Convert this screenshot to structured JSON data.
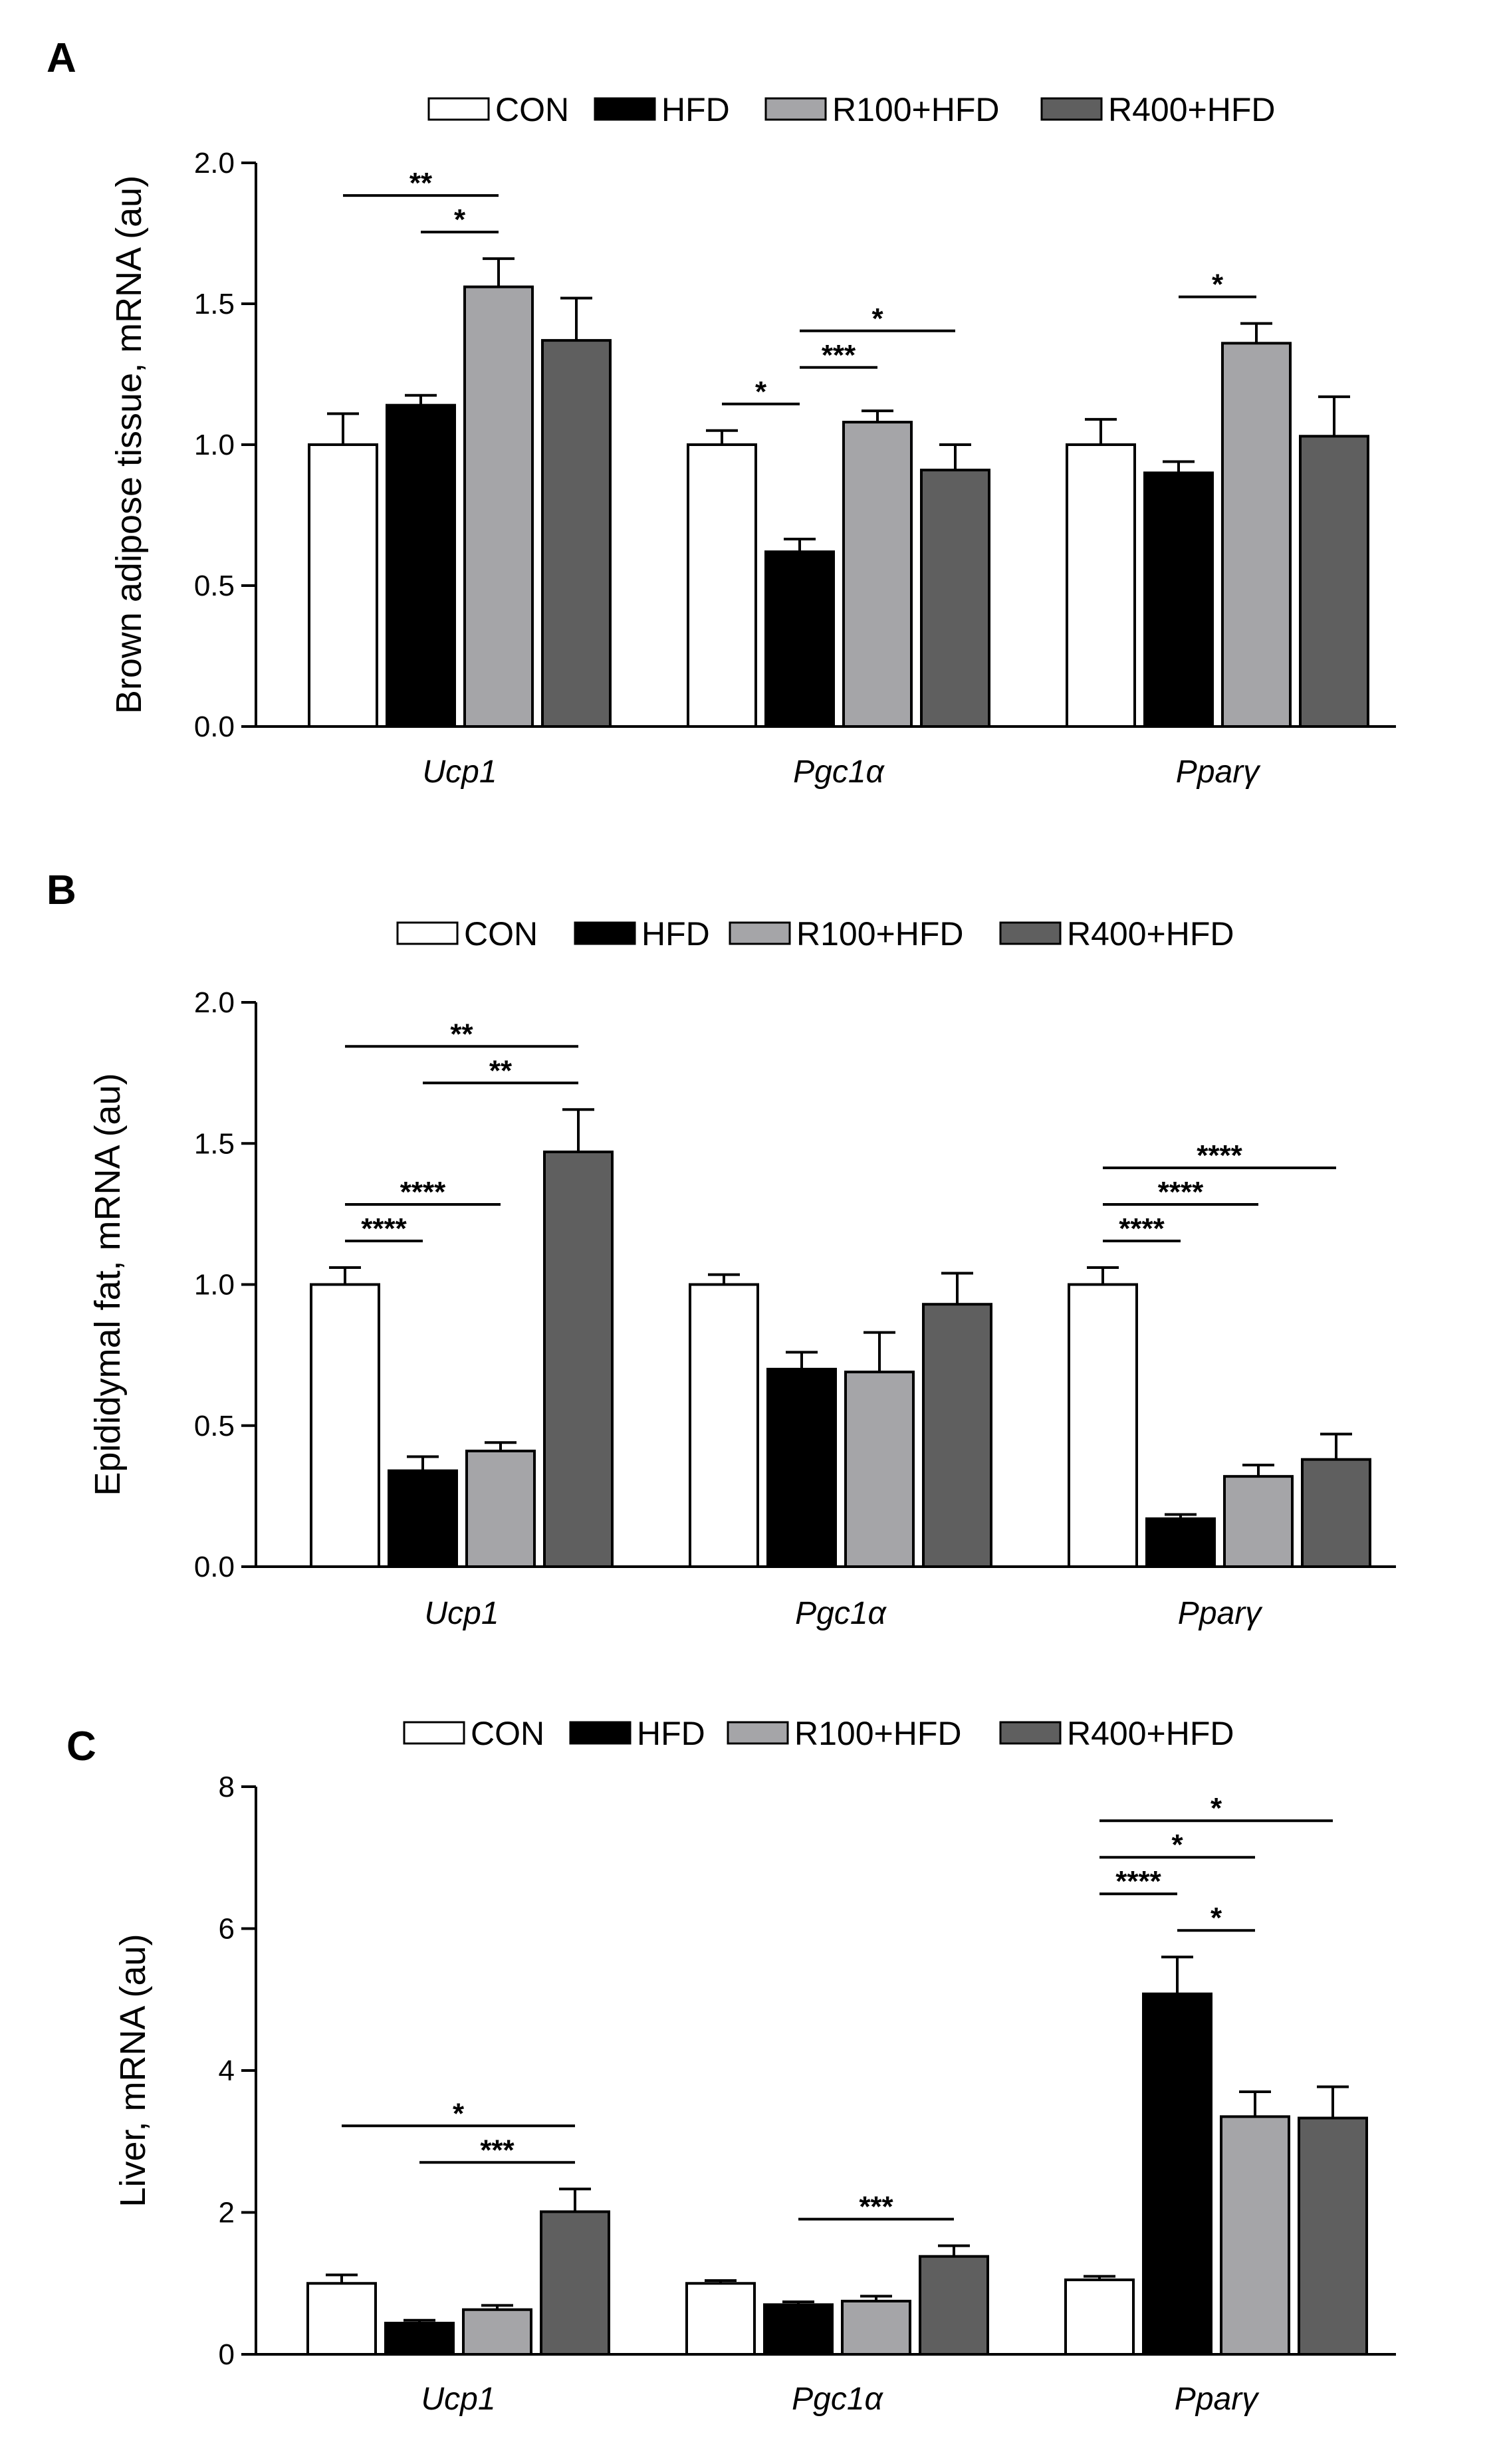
{
  "legend_colors": {
    "CON": "#ffffff",
    "HFD": "#000000",
    "R100+HFD": "#a5a5a8",
    "R400+HFD": "#5f5f5f"
  },
  "chart_data": [
    {
      "type": "bar",
      "panel": "A",
      "ylabel": "Brown adipose tissue, mRNA (au)",
      "ylim": [
        0,
        2.0
      ],
      "yticks": [
        "0.0",
        "0.5",
        "1.0",
        "1.5",
        "2.0"
      ],
      "categories": [
        "Ucp1",
        "Pgc1α",
        "Pparγ"
      ],
      "legend": [
        "CON",
        "HFD",
        "R100+HFD",
        "R400+HFD"
      ],
      "series": [
        {
          "name": "CON",
          "values": [
            1.0,
            1.0,
            1.0
          ],
          "errors": [
            0.11,
            0.05,
            0.09
          ]
        },
        {
          "name": "HFD",
          "values": [
            1.14,
            0.62,
            0.9
          ],
          "errors": [
            0.035,
            0.045,
            0.04
          ]
        },
        {
          "name": "R100+HFD",
          "values": [
            1.56,
            1.08,
            1.36
          ],
          "errors": [
            0.1,
            0.04,
            0.07
          ]
        },
        {
          "name": "R400+HFD",
          "values": [
            1.37,
            0.91,
            1.03
          ],
          "errors": [
            0.15,
            0.09,
            0.14
          ]
        }
      ],
      "significance": [
        {
          "category": 0,
          "from": 0,
          "to": 2,
          "label": "**"
        },
        {
          "category": 0,
          "from": 1,
          "to": 2,
          "label": "*"
        },
        {
          "category": 1,
          "from": 0,
          "to": 1,
          "label": "*"
        },
        {
          "category": 1,
          "from": 1,
          "to": 2,
          "label": "***"
        },
        {
          "category": 1,
          "from": 1,
          "to": 3,
          "label": "*"
        },
        {
          "category": 2,
          "from": 1,
          "to": 2,
          "label": "*"
        }
      ]
    },
    {
      "type": "bar",
      "panel": "B",
      "ylabel": "Epididymal fat, mRNA (au)",
      "ylim": [
        0,
        2.0
      ],
      "yticks": [
        "0.0",
        "0.5",
        "1.0",
        "1.5",
        "2.0"
      ],
      "categories": [
        "Ucp1",
        "Pgc1α",
        "Pparγ"
      ],
      "legend": [
        "CON",
        "HFD",
        "R100+HFD",
        "R400+HFD"
      ],
      "series": [
        {
          "name": "CON",
          "values": [
            1.0,
            1.0,
            1.0
          ],
          "errors": [
            0.06,
            0.035,
            0.06
          ]
        },
        {
          "name": "HFD",
          "values": [
            0.34,
            0.7,
            0.17
          ],
          "errors": [
            0.05,
            0.06,
            0.015
          ]
        },
        {
          "name": "R100+HFD",
          "values": [
            0.41,
            0.69,
            0.32
          ],
          "errors": [
            0.03,
            0.14,
            0.04
          ]
        },
        {
          "name": "R400+HFD",
          "values": [
            1.47,
            0.93,
            0.38
          ],
          "errors": [
            0.15,
            0.11,
            0.09
          ]
        }
      ],
      "significance": [
        {
          "category": 0,
          "from": 1,
          "to": 3,
          "label": "**"
        },
        {
          "category": 0,
          "from": 0,
          "to": 3,
          "label": "**"
        },
        {
          "category": 0,
          "from": 0,
          "to": 2,
          "label": "****"
        },
        {
          "category": 0,
          "from": 0,
          "to": 1,
          "label": "****"
        },
        {
          "category": 2,
          "from": 0,
          "to": 3,
          "label": "****"
        },
        {
          "category": 2,
          "from": 0,
          "to": 2,
          "label": "****"
        },
        {
          "category": 2,
          "from": 0,
          "to": 1,
          "label": "****"
        }
      ]
    },
    {
      "type": "bar",
      "panel": "C",
      "ylabel": "Liver, mRNA (au)",
      "ylim": [
        0,
        8
      ],
      "yticks": [
        "0",
        "2",
        "4",
        "6",
        "8"
      ],
      "categories": [
        "Ucp1",
        "Pgc1α",
        "Pparγ"
      ],
      "legend": [
        "CON",
        "HFD",
        "R100+HFD",
        "R400+HFD"
      ],
      "series": [
        {
          "name": "CON",
          "values": [
            1.0,
            1.0,
            1.05
          ],
          "errors": [
            0.12,
            0.04,
            0.05
          ]
        },
        {
          "name": "HFD",
          "values": [
            0.44,
            0.7,
            5.08
          ],
          "errors": [
            0.04,
            0.04,
            0.52
          ]
        },
        {
          "name": "R100+HFD",
          "values": [
            0.63,
            0.75,
            3.35
          ],
          "errors": [
            0.06,
            0.07,
            0.35
          ]
        },
        {
          "name": "R400+HFD",
          "values": [
            2.01,
            1.38,
            3.33
          ],
          "errors": [
            0.32,
            0.15,
            0.44
          ]
        }
      ],
      "significance": [
        {
          "category": 0,
          "from": 1,
          "to": 3,
          "label": "***"
        },
        {
          "category": 0,
          "from": 0,
          "to": 3,
          "label": "*"
        },
        {
          "category": 1,
          "from": 1,
          "to": 3,
          "label": "***"
        },
        {
          "category": 2,
          "from": 0,
          "to": 3,
          "label": "*"
        },
        {
          "category": 2,
          "from": 0,
          "to": 2,
          "label": "*"
        },
        {
          "category": 2,
          "from": 1,
          "to": 2,
          "label": "*"
        },
        {
          "category": 2,
          "from": 0,
          "to": 1,
          "label": "****"
        }
      ]
    }
  ]
}
